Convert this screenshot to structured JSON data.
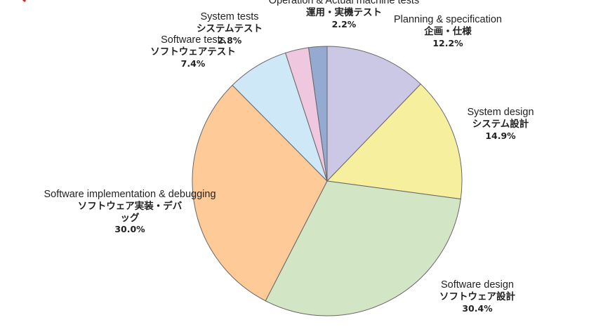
{
  "chart_data": {
    "type": "pie",
    "title": "",
    "start_angle_deg": 90,
    "direction": "clockwise",
    "slices": [
      {
        "en": "Planning & specification",
        "jp": "企画・仕様",
        "pct_label": "12.2%",
        "value": 12.2,
        "color": "#cac8e4"
      },
      {
        "en": "System design",
        "jp": "システム設計",
        "pct_label": "14.9%",
        "value": 14.9,
        "color": "#f6ef9e"
      },
      {
        "en": "Software design",
        "jp": "ソフトウェア設計",
        "pct_label": "30.4%",
        "value": 30.4,
        "color": "#d2e6c6"
      },
      {
        "en": "Software implementation & debugging",
        "jp": "ソフトウェア実装・デバッグ",
        "pct_label": "30.0%",
        "value": 30.0,
        "color": "#fdca98"
      },
      {
        "en": "Software tests",
        "jp": "ソフトウェアテスト",
        "pct_label": "7.4%",
        "value": 7.4,
        "color": "#cfe8f7"
      },
      {
        "en": "System tests",
        "jp": "システムテスト",
        "pct_label": "2.8%",
        "value": 2.8,
        "color": "#efc8df"
      },
      {
        "en": "Operation & Actual machine tests",
        "jp": "運用・実機テスト",
        "pct_label": "2.2%",
        "value": 2.2,
        "color": "#95aad0"
      }
    ],
    "edge_color": "#666666",
    "accent_mark_color": "#cc2222"
  }
}
